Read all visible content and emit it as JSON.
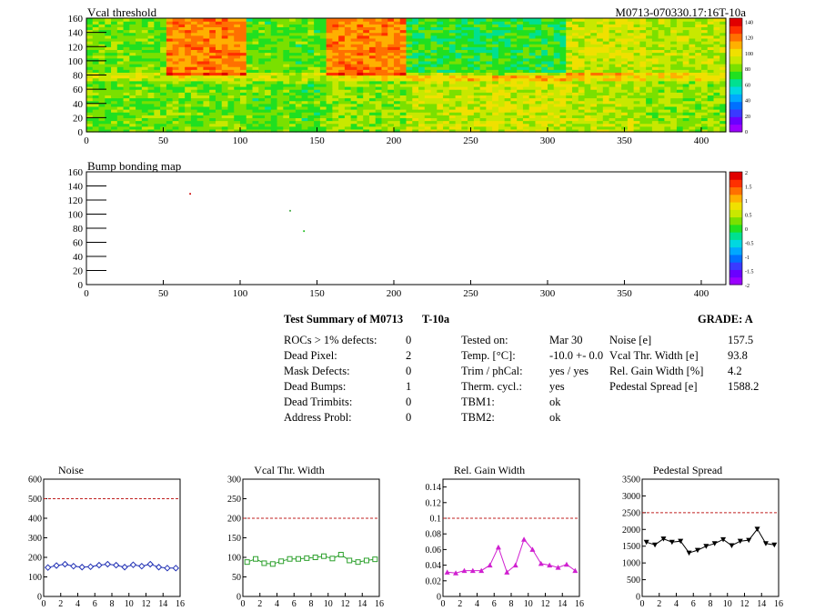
{
  "module_id": "M0713-070330.17:16T-10a",
  "top_map": {
    "title": "Vcal threshold",
    "xticks": [
      0,
      50,
      100,
      150,
      200,
      250,
      300,
      350,
      400
    ],
    "yticks": [
      0,
      20,
      40,
      60,
      80,
      100,
      120,
      140,
      160
    ],
    "xlim": [
      0,
      416
    ],
    "ylim": [
      0,
      160
    ],
    "palette_labels": [
      "140",
      "120",
      "100",
      "80",
      "60",
      "40",
      "20",
      "0"
    ],
    "roc_levels": [
      [
        80,
        82,
        78,
        85,
        92,
        95,
        90,
        85
      ],
      [
        80,
        118,
        78,
        118,
        72,
        72,
        95,
        90
      ]
    ]
  },
  "bump_map": {
    "title": "Bump bonding map",
    "xticks": [
      0,
      50,
      100,
      150,
      200,
      250,
      300,
      350,
      400
    ],
    "yticks": [
      0,
      20,
      40,
      60,
      80,
      100,
      120,
      140,
      160
    ],
    "palette_labels": [
      "2",
      "1.5",
      "1",
      "0.5",
      "0",
      "-0.5",
      "-1",
      "-1.5",
      "-2"
    ],
    "points": [
      {
        "x": 67,
        "y": 130,
        "color": "#d01010"
      },
      {
        "x": 132,
        "y": 106,
        "color": "#44aa44"
      },
      {
        "x": 141,
        "y": 77,
        "color": "#22bb22"
      }
    ]
  },
  "summary": {
    "header": "Test Summary of M0713",
    "tag": "T-10a",
    "grade_label": "GRADE:",
    "grade": "A",
    "defects": [
      {
        "label": "ROCs > 1% defects:",
        "value": "0"
      },
      {
        "label": "Dead Pixel:",
        "value": "2"
      },
      {
        "label": "Mask Defects:",
        "value": "0"
      },
      {
        "label": "Dead Bumps:",
        "value": "1"
      },
      {
        "label": "Dead Trimbits:",
        "value": "0"
      },
      {
        "label": "Address Probl:",
        "value": "0"
      }
    ],
    "conditions": [
      {
        "label": "Tested on:",
        "value": "Mar 30"
      },
      {
        "label": "Temp. [°C]:",
        "value": "-10.0 +- 0.0"
      },
      {
        "label": "Trim / phCal:",
        "value": "yes / yes"
      },
      {
        "label": "Therm. cycl.:",
        "value": "yes"
      },
      {
        "label": "TBM1:",
        "value": "ok"
      },
      {
        "label": "TBM2:",
        "value": "ok"
      }
    ],
    "metrics": [
      {
        "label": "Noise [e]",
        "value": "157.5"
      },
      {
        "label": "Vcal Thr. Width [e]",
        "value": "93.8"
      },
      {
        "label": "Rel. Gain Width [%]",
        "value": "4.2"
      },
      {
        "label": "Pedestal Spread [e]",
        "value": "1588.2"
      }
    ]
  },
  "chart_data": [
    {
      "type": "line",
      "title": "Noise",
      "ylim": [
        0,
        600
      ],
      "xlim": [
        0,
        16
      ],
      "yticks": [
        0,
        100,
        200,
        300,
        400,
        500,
        600
      ],
      "ytick_labels": [
        "0",
        "100",
        "200",
        "300",
        "400",
        "500",
        "600"
      ],
      "xticks": [
        0,
        2,
        4,
        6,
        8,
        10,
        12,
        14,
        16
      ],
      "threshold": 500,
      "marker": "diamond",
      "color": "#1f2fb4",
      "x": [
        0.5,
        1.5,
        2.5,
        3.5,
        4.5,
        5.5,
        6.5,
        7.5,
        8.5,
        9.5,
        10.5,
        11.5,
        12.5,
        13.5,
        14.5,
        15.5
      ],
      "values": [
        148,
        158,
        165,
        155,
        150,
        152,
        160,
        165,
        160,
        150,
        162,
        155,
        165,
        150,
        145,
        145
      ]
    },
    {
      "type": "line",
      "title": "Vcal Thr. Width",
      "ylim": [
        0,
        300
      ],
      "xlim": [
        0,
        16
      ],
      "yticks": [
        0,
        50,
        100,
        150,
        200,
        250,
        300
      ],
      "ytick_labels": [
        "0",
        "50",
        "100",
        "150",
        "200",
        "250",
        "300"
      ],
      "xticks": [
        0,
        2,
        4,
        6,
        8,
        10,
        12,
        14,
        16
      ],
      "threshold": 200,
      "marker": "square",
      "color": "#2ca02c",
      "x": [
        0.5,
        1.5,
        2.5,
        3.5,
        4.5,
        5.5,
        6.5,
        7.5,
        8.5,
        9.5,
        10.5,
        11.5,
        12.5,
        13.5,
        14.5,
        15.5
      ],
      "values": [
        88,
        96,
        85,
        83,
        90,
        96,
        96,
        98,
        100,
        103,
        97,
        107,
        92,
        88,
        92,
        95
      ]
    },
    {
      "type": "line",
      "title": "Rel. Gain Width",
      "ylim": [
        0,
        0.15
      ],
      "xlim": [
        0,
        16
      ],
      "yticks": [
        0,
        0.02,
        0.04,
        0.06,
        0.08,
        0.1,
        0.12,
        0.14
      ],
      "ytick_labels": [
        "0",
        "0.02",
        "0.04",
        "0.06",
        "0.08",
        "0.1",
        "0.12",
        "0.14"
      ],
      "xticks": [
        0,
        2,
        4,
        6,
        8,
        10,
        12,
        14,
        16
      ],
      "threshold": 0.1,
      "marker": "triangle",
      "color": "#d020d0",
      "x": [
        0.5,
        1.5,
        2.5,
        3.5,
        4.5,
        5.5,
        6.5,
        7.5,
        8.5,
        9.5,
        10.5,
        11.5,
        12.5,
        13.5,
        14.5,
        15.5
      ],
      "values": [
        0.031,
        0.03,
        0.033,
        0.033,
        0.033,
        0.04,
        0.063,
        0.031,
        0.04,
        0.073,
        0.06,
        0.042,
        0.04,
        0.037,
        0.041,
        0.033
      ]
    },
    {
      "type": "line",
      "title": "Pedestal Spread",
      "ylim": [
        0,
        3500
      ],
      "xlim": [
        0,
        16
      ],
      "yticks": [
        0,
        500,
        1000,
        1500,
        2000,
        2500,
        3000,
        3500
      ],
      "ytick_labels": [
        "0",
        "500",
        "1000",
        "1500",
        "2000",
        "2500",
        "3000",
        "3500"
      ],
      "xticks": [
        0,
        2,
        4,
        6,
        8,
        10,
        12,
        14,
        16
      ],
      "threshold": 2500,
      "marker": "triangle-down",
      "color": "#000000",
      "x": [
        0.5,
        1.5,
        2.5,
        3.5,
        4.5,
        5.5,
        6.5,
        7.5,
        8.5,
        9.5,
        10.5,
        11.5,
        12.5,
        13.5,
        14.5,
        15.5
      ],
      "values": [
        1620,
        1540,
        1720,
        1620,
        1650,
        1300,
        1380,
        1500,
        1580,
        1700,
        1520,
        1650,
        1680,
        2010,
        1580,
        1540
      ]
    }
  ]
}
